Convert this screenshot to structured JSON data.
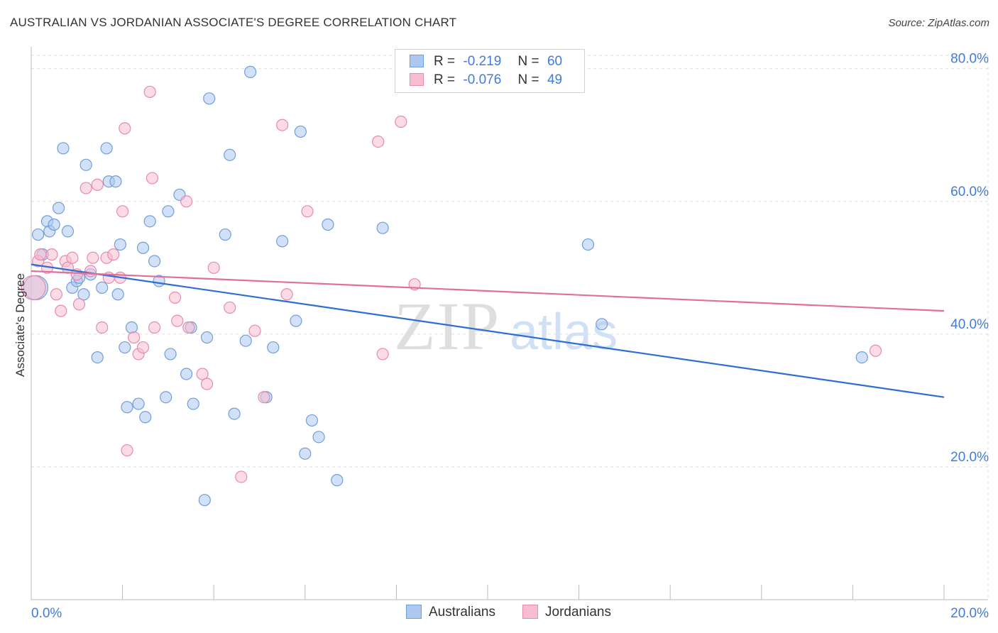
{
  "header": {
    "title": "AUSTRALIAN VS JORDANIAN ASSOCIATE'S DEGREE CORRELATION CHART",
    "source": "Source: ZipAtlas.com"
  },
  "legend": {
    "rows": [
      {
        "r_label": "R =",
        "r_value": "-0.219",
        "n_label": "N =",
        "n_value": "60"
      },
      {
        "r_label": "R =",
        "r_value": "-0.076",
        "n_label": "N =",
        "n_value": "49"
      }
    ]
  },
  "bottom_legend": {
    "items": [
      "Australians",
      "Jordanians"
    ]
  },
  "watermark": {
    "zip": "ZIP",
    "atlas": "atlas"
  },
  "colors": {
    "australians_fill": "#adc9f1",
    "australians_stroke": "#6f9fdb",
    "australians_line": "#2c6fd1",
    "jordanians_fill": "#f7bdd0",
    "jordanians_stroke": "#e88aab",
    "jordanians_line": "#e0709a",
    "tick_label": "#3f7be0",
    "grid": "#dddddd"
  },
  "chart_data": {
    "type": "scatter",
    "title": "AUSTRALIAN VS JORDANIAN ASSOCIATE'S DEGREE CORRELATION CHART",
    "xlabel": "",
    "ylabel": "Associate's Degree",
    "xlim": [
      0,
      20
    ],
    "ylim": [
      0,
      82
    ],
    "x_tick_labels": [
      "0.0%",
      "20.0%"
    ],
    "y_ticks": [
      20,
      40,
      60,
      80
    ],
    "y_tick_labels": [
      "20.0%",
      "40.0%",
      "60.0%",
      "80.0%"
    ],
    "grid": true,
    "series": [
      {
        "name": "Australians",
        "points": [
          {
            "x": 0.1,
            "y": 47,
            "big": true
          },
          {
            "x": 0.15,
            "y": 55
          },
          {
            "x": 0.25,
            "y": 52
          },
          {
            "x": 0.35,
            "y": 57
          },
          {
            "x": 0.4,
            "y": 55.5
          },
          {
            "x": 0.5,
            "y": 56.5
          },
          {
            "x": 0.6,
            "y": 59
          },
          {
            "x": 0.7,
            "y": 68
          },
          {
            "x": 0.8,
            "y": 55.5
          },
          {
            "x": 0.9,
            "y": 47
          },
          {
            "x": 1.0,
            "y": 48
          },
          {
            "x": 1.05,
            "y": 48.5
          },
          {
            "x": 1.15,
            "y": 46
          },
          {
            "x": 1.2,
            "y": 65.5
          },
          {
            "x": 1.3,
            "y": 49
          },
          {
            "x": 1.45,
            "y": 36.5
          },
          {
            "x": 1.55,
            "y": 47
          },
          {
            "x": 1.65,
            "y": 68
          },
          {
            "x": 1.7,
            "y": 63
          },
          {
            "x": 1.85,
            "y": 63
          },
          {
            "x": 1.9,
            "y": 46
          },
          {
            "x": 1.95,
            "y": 53.5
          },
          {
            "x": 2.05,
            "y": 38
          },
          {
            "x": 2.1,
            "y": 29
          },
          {
            "x": 2.2,
            "y": 41
          },
          {
            "x": 2.35,
            "y": 29.5
          },
          {
            "x": 2.45,
            "y": 53
          },
          {
            "x": 2.5,
            "y": 27.5
          },
          {
            "x": 2.6,
            "y": 57
          },
          {
            "x": 2.7,
            "y": 51
          },
          {
            "x": 2.8,
            "y": 48
          },
          {
            "x": 2.95,
            "y": 30.5
          },
          {
            "x": 3.0,
            "y": 58.5
          },
          {
            "x": 3.05,
            "y": 37
          },
          {
            "x": 3.25,
            "y": 61
          },
          {
            "x": 3.4,
            "y": 34
          },
          {
            "x": 3.5,
            "y": 41
          },
          {
            "x": 3.55,
            "y": 29.5
          },
          {
            "x": 3.8,
            "y": 15
          },
          {
            "x": 3.85,
            "y": 39.5
          },
          {
            "x": 3.9,
            "y": 75.5
          },
          {
            "x": 4.25,
            "y": 55
          },
          {
            "x": 4.35,
            "y": 67
          },
          {
            "x": 4.45,
            "y": 28
          },
          {
            "x": 4.7,
            "y": 39
          },
          {
            "x": 4.8,
            "y": 79.5
          },
          {
            "x": 5.15,
            "y": 30.5
          },
          {
            "x": 5.3,
            "y": 38
          },
          {
            "x": 5.5,
            "y": 54
          },
          {
            "x": 5.8,
            "y": 42
          },
          {
            "x": 5.9,
            "y": 70.5
          },
          {
            "x": 6.0,
            "y": 22
          },
          {
            "x": 6.15,
            "y": 27
          },
          {
            "x": 6.3,
            "y": 24.5
          },
          {
            "x": 6.5,
            "y": 56.5
          },
          {
            "x": 6.7,
            "y": 18
          },
          {
            "x": 7.7,
            "y": 56
          },
          {
            "x": 12.2,
            "y": 53.5
          },
          {
            "x": 12.5,
            "y": 41.5
          },
          {
            "x": 18.2,
            "y": 36.5
          }
        ],
        "trend": {
          "x": [
            0,
            20
          ],
          "y": [
            50.5,
            30.5
          ]
        }
      },
      {
        "name": "Jordanians",
        "points": [
          {
            "x": 0.05,
            "y": 47,
            "big": true
          },
          {
            "x": 0.15,
            "y": 51
          },
          {
            "x": 0.2,
            "y": 52
          },
          {
            "x": 0.35,
            "y": 50
          },
          {
            "x": 0.45,
            "y": 52
          },
          {
            "x": 0.55,
            "y": 46
          },
          {
            "x": 0.65,
            "y": 43.5
          },
          {
            "x": 0.75,
            "y": 51
          },
          {
            "x": 0.8,
            "y": 50
          },
          {
            "x": 0.9,
            "y": 51.5
          },
          {
            "x": 1.0,
            "y": 49
          },
          {
            "x": 1.05,
            "y": 44.5
          },
          {
            "x": 1.2,
            "y": 62
          },
          {
            "x": 1.3,
            "y": 49.5
          },
          {
            "x": 1.35,
            "y": 51.5
          },
          {
            "x": 1.45,
            "y": 62.5
          },
          {
            "x": 1.55,
            "y": 41
          },
          {
            "x": 1.65,
            "y": 51.5
          },
          {
            "x": 1.7,
            "y": 48.5
          },
          {
            "x": 1.8,
            "y": 52
          },
          {
            "x": 1.95,
            "y": 48.5
          },
          {
            "x": 2.0,
            "y": 58.5
          },
          {
            "x": 2.05,
            "y": 71
          },
          {
            "x": 2.1,
            "y": 22.5
          },
          {
            "x": 2.25,
            "y": 39.5
          },
          {
            "x": 2.35,
            "y": 37
          },
          {
            "x": 2.45,
            "y": 38
          },
          {
            "x": 2.6,
            "y": 76.5
          },
          {
            "x": 2.65,
            "y": 63.5
          },
          {
            "x": 2.7,
            "y": 41
          },
          {
            "x": 3.15,
            "y": 45.5
          },
          {
            "x": 3.2,
            "y": 42
          },
          {
            "x": 3.4,
            "y": 60
          },
          {
            "x": 3.45,
            "y": 41
          },
          {
            "x": 3.75,
            "y": 34
          },
          {
            "x": 3.85,
            "y": 32.5
          },
          {
            "x": 4.0,
            "y": 50
          },
          {
            "x": 4.35,
            "y": 44
          },
          {
            "x": 4.6,
            "y": 18.5
          },
          {
            "x": 4.9,
            "y": 40.5
          },
          {
            "x": 5.1,
            "y": 30.5
          },
          {
            "x": 5.5,
            "y": 71.5
          },
          {
            "x": 5.6,
            "y": 46
          },
          {
            "x": 6.05,
            "y": 58.5
          },
          {
            "x": 7.6,
            "y": 69
          },
          {
            "x": 7.7,
            "y": 37
          },
          {
            "x": 8.1,
            "y": 72
          },
          {
            "x": 8.4,
            "y": 47.5
          },
          {
            "x": 18.5,
            "y": 37.5
          }
        ],
        "trend": {
          "x": [
            0,
            20
          ],
          "y": [
            49.5,
            43.5
          ]
        }
      }
    ]
  }
}
